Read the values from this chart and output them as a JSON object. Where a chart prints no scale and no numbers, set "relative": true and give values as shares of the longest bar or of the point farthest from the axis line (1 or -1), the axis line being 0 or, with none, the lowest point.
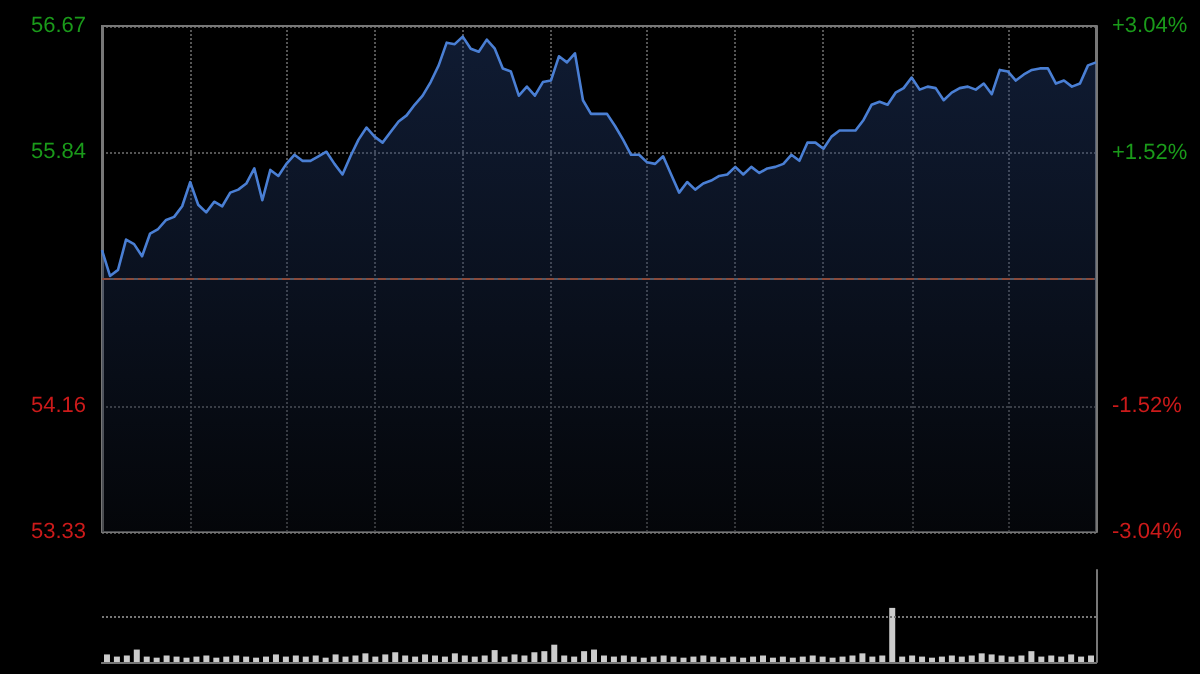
{
  "chart_data": [
    {
      "type": "area",
      "categories": [
        null,
        null,
        null,
        null,
        null,
        null,
        null,
        null,
        null,
        null,
        null,
        null,
        null,
        null,
        null,
        null,
        null,
        null,
        null,
        null,
        null,
        null,
        null,
        null,
        null,
        null,
        null,
        null,
        null,
        null,
        null,
        null,
        null,
        null,
        null,
        null,
        null,
        null,
        null,
        null,
        null,
        null,
        null,
        null,
        null,
        null,
        null,
        null,
        null,
        null,
        null,
        null,
        null,
        null,
        null,
        null,
        null,
        null,
        null,
        null,
        null,
        null,
        null,
        null,
        null,
        null,
        null,
        null,
        null,
        null,
        null,
        null,
        null,
        null,
        null,
        null,
        null,
        null,
        null,
        null,
        null,
        null,
        null,
        null,
        null,
        null,
        null,
        null,
        null,
        null,
        null,
        null,
        null,
        null,
        null,
        null,
        null,
        null,
        null,
        null,
        null,
        null,
        null,
        null,
        null,
        null,
        null,
        null,
        null,
        null,
        null,
        null,
        null,
        null,
        null,
        null,
        null,
        null,
        null,
        null,
        null,
        null,
        null,
        null,
        null
      ],
      "series": [
        {
          "color": "#4a7fd4",
          "values": [
            55.19,
            55.02,
            55.06,
            55.26,
            55.23,
            55.15,
            55.3,
            55.33,
            55.39,
            55.41,
            55.48,
            55.64,
            55.49,
            55.44,
            55.51,
            55.48,
            55.57,
            55.59,
            55.63,
            55.73,
            55.52,
            55.72,
            55.68,
            55.76,
            55.82,
            55.78,
            55.78,
            55.81,
            55.84,
            55.76,
            55.69,
            55.81,
            55.92,
            56.0,
            55.94,
            55.9,
            55.97,
            56.04,
            56.08,
            56.15,
            56.21,
            56.3,
            56.41,
            56.56,
            56.55,
            56.6,
            56.52,
            56.5,
            56.58,
            56.52,
            56.39,
            56.37,
            56.21,
            56.27,
            56.21,
            56.3,
            56.31,
            56.47,
            56.43,
            56.49,
            56.18,
            56.09,
            56.09,
            56.09,
            56.01,
            55.92,
            55.82,
            55.82,
            55.77,
            55.76,
            55.81,
            55.69,
            55.57,
            55.64,
            55.59,
            55.63,
            55.65,
            55.68,
            55.69,
            55.74,
            55.69,
            55.74,
            55.7,
            55.73,
            55.74,
            55.76,
            55.82,
            55.78,
            55.9,
            55.9,
            55.86,
            55.94,
            55.98,
            55.98,
            55.98,
            56.05,
            56.15,
            56.17,
            56.15,
            56.23,
            56.26,
            56.33,
            56.25,
            56.27,
            56.26,
            56.18,
            56.23,
            56.26,
            56.27,
            56.25,
            56.29,
            56.22,
            56.38,
            56.37,
            56.31,
            56.35,
            56.38,
            56.39,
            56.39,
            56.29,
            56.31,
            56.27,
            56.29,
            56.41,
            56.43
          ]
        }
      ],
      "ylim": [
        53.33,
        56.67
      ],
      "yticks": [
        53.33,
        54.16,
        55.84,
        56.67
      ],
      "y2lim": [
        -3.04,
        3.04
      ],
      "y2ticks": [
        {
          "value": -3.04,
          "label": "-3.04%"
        },
        {
          "value": -1.52,
          "label": "-1.52%"
        },
        {
          "value": 1.52,
          "label": "+1.52%"
        },
        {
          "value": 3.04,
          "label": "+3.04%"
        }
      ],
      "ref_lines": [
        {
          "axis": "y",
          "value": 55.0,
          "color": "#8a4a3a",
          "line_style": "dashed"
        }
      ],
      "grid": true,
      "tick_labels": "y"
    },
    {
      "type": "bar",
      "relative": true,
      "color": "#cccccc",
      "ref_lines": [
        {
          "axis": "y",
          "value": 0.83,
          "color": "#777777",
          "line_style": "dotted"
        }
      ],
      "categories": [
        null,
        null,
        null,
        null,
        null,
        null,
        null,
        null,
        null,
        null,
        null,
        null,
        null,
        null,
        null,
        null,
        null,
        null,
        null,
        null,
        null,
        null,
        null,
        null,
        null,
        null,
        null,
        null,
        null,
        null,
        null,
        null,
        null,
        null,
        null,
        null,
        null,
        null,
        null,
        null,
        null,
        null,
        null,
        null,
        null,
        null,
        null,
        null,
        null,
        null,
        null,
        null,
        null,
        null,
        null,
        null,
        null,
        null,
        null,
        null,
        null,
        null,
        null,
        null,
        null,
        null,
        null,
        null,
        null,
        null,
        null,
        null,
        null,
        null,
        null,
        null,
        null,
        null,
        null,
        null,
        null,
        null,
        null,
        null,
        null,
        null,
        null,
        null,
        null,
        null,
        null,
        null,
        null,
        null,
        null,
        null,
        null,
        null,
        null,
        null
      ],
      "values": [
        0.14,
        0.1,
        0.12,
        0.23,
        0.1,
        0.08,
        0.12,
        0.1,
        0.08,
        0.1,
        0.12,
        0.08,
        0.1,
        0.12,
        0.1,
        0.08,
        0.1,
        0.14,
        0.1,
        0.12,
        0.1,
        0.12,
        0.08,
        0.14,
        0.1,
        0.12,
        0.16,
        0.1,
        0.14,
        0.18,
        0.12,
        0.1,
        0.14,
        0.12,
        0.1,
        0.16,
        0.12,
        0.1,
        0.12,
        0.22,
        0.1,
        0.14,
        0.12,
        0.18,
        0.2,
        0.32,
        0.12,
        0.1,
        0.2,
        0.23,
        0.12,
        0.1,
        0.12,
        0.1,
        0.08,
        0.1,
        0.12,
        0.1,
        0.08,
        0.1,
        0.12,
        0.1,
        0.08,
        0.1,
        0.08,
        0.1,
        0.12,
        0.08,
        0.1,
        0.08,
        0.1,
        0.12,
        0.1,
        0.08,
        0.1,
        0.12,
        0.16,
        0.1,
        0.12,
        1,
        0.1,
        0.12,
        0.1,
        0.08,
        0.1,
        0.12,
        0.1,
        0.12,
        0.16,
        0.14,
        0.12,
        0.1,
        0.12,
        0.2,
        0.1,
        0.12,
        0.1,
        0.14,
        0.1,
        0.12
      ]
    }
  ]
}
